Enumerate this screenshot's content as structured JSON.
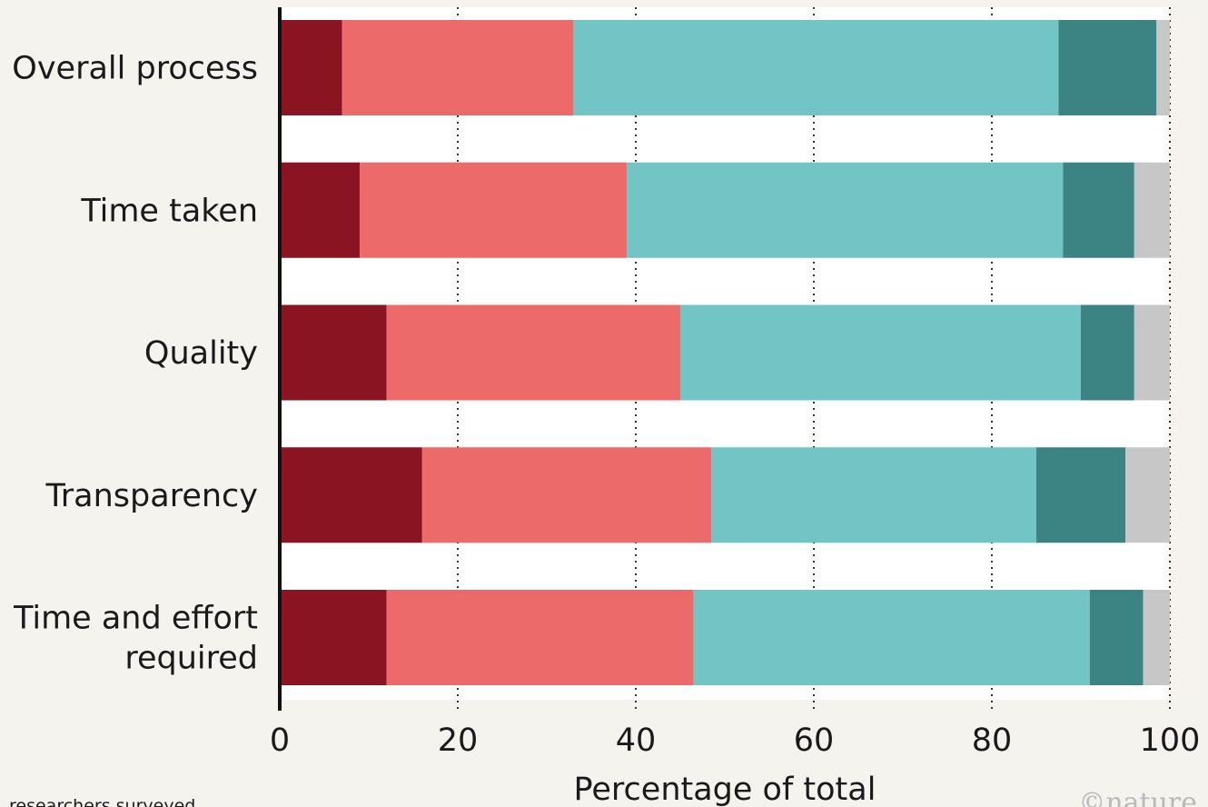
{
  "chart_data": {
    "type": "bar",
    "orientation": "horizontal",
    "stacked": true,
    "categories": [
      [
        "Overall process"
      ],
      [
        "Time taken"
      ],
      [
        "Quality"
      ],
      [
        "Transparency"
      ],
      [
        "Time and effort",
        "required"
      ]
    ],
    "series": [
      {
        "color": "#8a1421",
        "values": [
          7,
          9,
          12,
          16,
          12
        ]
      },
      {
        "color": "#ec6a6a",
        "values": [
          26,
          30,
          33,
          32.5,
          34.5
        ]
      },
      {
        "color": "#72c4c5",
        "values": [
          54.5,
          49,
          45,
          36.5,
          44.5
        ]
      },
      {
        "color": "#3c8384",
        "values": [
          11,
          8,
          6,
          10,
          6
        ]
      },
      {
        "color": "#c7c7c7",
        "values": [
          1.5,
          4,
          4,
          5,
          3
        ]
      }
    ],
    "xlabel": "Percentage of total",
    "xlim": [
      0,
      100
    ],
    "xticks": [
      "0",
      "20",
      "40",
      "60",
      "80",
      "100"
    ],
    "grid": "vertical dotted at x ticks",
    "legend": "none"
  },
  "footnote": "researchers surveyed",
  "logo_text": "©nature"
}
